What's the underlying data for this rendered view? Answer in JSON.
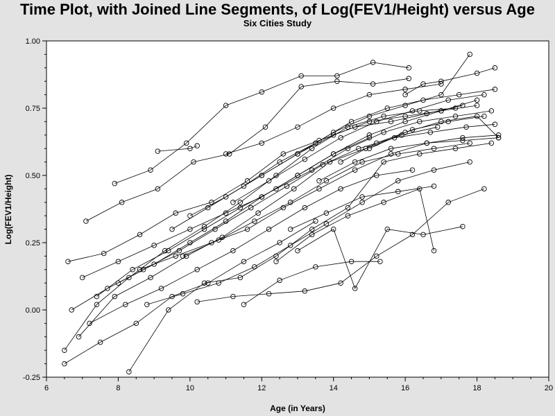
{
  "title": "Time Plot, with Joined Line Segments, of Log(FEV1/Height) versus Age",
  "subtitle": "Six Cities Study",
  "chart_data": {
    "type": "line",
    "title": "Time Plot, with Joined Line Segments, of Log(FEV1/Height) versus Age",
    "subtitle": "Six Cities Study",
    "xlabel": "Age (in Years)",
    "ylabel": "Log(FEV1/Height)",
    "xlim": [
      6,
      20
    ],
    "ylim": [
      -0.25,
      1.0
    ],
    "x_ticks": [
      "6",
      "8",
      "10",
      "12",
      "14",
      "16",
      "18",
      "20"
    ],
    "y_ticks": [
      "-0.25",
      "0.00",
      "0.25",
      "0.50",
      "0.75",
      "1.00"
    ],
    "grid": false,
    "legend": "none",
    "marker": "circle",
    "line_color": "#000000",
    "note": "Spaghetti plot of many subjects; a representative subset of trajectories is listed.",
    "series": [
      {
        "x": [
          6.5,
          7.4,
          8.3,
          9.3,
          10.4,
          11.4,
          12.4,
          13.4,
          14.4,
          15.4,
          16.4,
          17.4
        ],
        "y": [
          -0.15,
          0.02,
          0.12,
          0.22,
          0.31,
          0.4,
          0.5,
          0.6,
          0.68,
          0.72,
          0.74,
          0.75
        ]
      },
      {
        "x": [
          7.9,
          8.9,
          9.9,
          11.0,
          12.0,
          13.1,
          14.1,
          15.1,
          16.1
        ],
        "y": [
          0.47,
          0.52,
          0.62,
          0.76,
          0.81,
          0.87,
          0.87,
          0.92,
          0.9
        ]
      },
      {
        "x": [
          9.1,
          10.0,
          10.2
        ],
        "y": [
          0.59,
          0.6,
          0.61
        ]
      },
      {
        "x": [
          7.1,
          8.1,
          9.1,
          10.1,
          11.1,
          12.1,
          13.1,
          14.1,
          15.1,
          16.1
        ],
        "y": [
          0.33,
          0.4,
          0.45,
          0.55,
          0.58,
          0.68,
          0.83,
          0.85,
          0.84,
          0.86
        ]
      },
      {
        "x": [
          6.6,
          7.6,
          8.6,
          9.6,
          10.6,
          11.6,
          12.6,
          13.6,
          14.6,
          15.6,
          16.6,
          17.6
        ],
        "y": [
          0.18,
          0.21,
          0.28,
          0.36,
          0.4,
          0.48,
          0.58,
          0.63,
          0.68,
          0.7,
          0.73,
          0.76
        ]
      },
      {
        "x": [
          8.3,
          9.4,
          10.4,
          11.4,
          12.4,
          13.4,
          14.4,
          15.4,
          16.4,
          17.4,
          18.4
        ],
        "y": [
          -0.23,
          0.0,
          0.1,
          0.12,
          0.2,
          0.3,
          0.38,
          0.55,
          0.58,
          0.6,
          0.62
        ]
      },
      {
        "x": [
          6.9,
          7.9,
          8.9,
          9.9,
          10.9,
          11.9,
          12.9,
          13.9,
          14.9,
          15.9,
          16.9
        ],
        "y": [
          -0.1,
          0.05,
          0.12,
          0.2,
          0.27,
          0.36,
          0.45,
          0.55,
          0.6,
          0.65,
          0.68
        ]
      },
      {
        "x": [
          10.2,
          11.2,
          12.2,
          13.2,
          14.2,
          15.2,
          16.2,
          17.2,
          18.2
        ],
        "y": [
          0.03,
          0.05,
          0.06,
          0.07,
          0.1,
          0.2,
          0.28,
          0.4,
          0.45
        ]
      },
      {
        "x": [
          11.5,
          12.5,
          13.5,
          14.5,
          15.3
        ],
        "y": [
          0.02,
          0.11,
          0.16,
          0.18,
          0.18
        ]
      },
      {
        "x": [
          12.4,
          13.4,
          14.4,
          15.4,
          16.4,
          16.8
        ],
        "y": [
          0.18,
          0.28,
          0.35,
          0.4,
          0.45,
          0.22
        ]
      },
      {
        "x": [
          13.0,
          14.0,
          14.6,
          15.5,
          16.5,
          17.6
        ],
        "y": [
          0.22,
          0.3,
          0.08,
          0.3,
          0.28,
          0.31
        ]
      },
      {
        "x": [
          7.4,
          8.4,
          9.4,
          10.4,
          11.4,
          12.4,
          13.4,
          14.4,
          15.4,
          16.4,
          17.4,
          18.4
        ],
        "y": [
          0.05,
          0.15,
          0.22,
          0.3,
          0.38,
          0.45,
          0.52,
          0.6,
          0.66,
          0.7,
          0.72,
          0.74
        ]
      },
      {
        "x": [
          8.0,
          9.0,
          10.0,
          11.0,
          12.0,
          13.0,
          14.0,
          15.0,
          16.0,
          17.0,
          18.0
        ],
        "y": [
          0.1,
          0.17,
          0.25,
          0.33,
          0.42,
          0.5,
          0.58,
          0.65,
          0.7,
          0.74,
          0.78
        ]
      },
      {
        "x": [
          6.7,
          7.7,
          8.7,
          9.7,
          10.7,
          11.7,
          12.7,
          13.7,
          14.7,
          15.7,
          16.7,
          17.7,
          18.5
        ],
        "y": [
          0.0,
          0.08,
          0.15,
          0.22,
          0.3,
          0.38,
          0.46,
          0.54,
          0.6,
          0.64,
          0.66,
          0.68,
          0.69
        ]
      },
      {
        "x": [
          9.5,
          10.5,
          11.5,
          12.5,
          13.5,
          14.5,
          15.5,
          16.5,
          17.5,
          18.5
        ],
        "y": [
          0.3,
          0.38,
          0.46,
          0.55,
          0.62,
          0.7,
          0.75,
          0.78,
          0.8,
          0.82
        ]
      },
      {
        "x": [
          10.0,
          11.0,
          12.0,
          13.0,
          14.0,
          15.0,
          16.0,
          17.0,
          18.0
        ],
        "y": [
          0.35,
          0.42,
          0.5,
          0.58,
          0.65,
          0.7,
          0.72,
          0.74,
          0.76
        ]
      },
      {
        "x": [
          11.2,
          12.2,
          13.2,
          14.2,
          15.2,
          16.2,
          17.2,
          18.2
        ],
        "y": [
          0.4,
          0.48,
          0.56,
          0.64,
          0.7,
          0.74,
          0.78,
          0.8
        ]
      },
      {
        "x": [
          12.0,
          13.0,
          14.0,
          15.0,
          16.0,
          17.0,
          17.8
        ],
        "y": [
          0.5,
          0.58,
          0.66,
          0.72,
          0.76,
          0.8,
          0.95
        ]
      },
      {
        "x": [
          8.6,
          9.6,
          10.6,
          11.6,
          12.6,
          13.6,
          14.6,
          15.6,
          16.6,
          17.6,
          18.6
        ],
        "y": [
          0.15,
          0.2,
          0.25,
          0.3,
          0.38,
          0.45,
          0.52,
          0.58,
          0.62,
          0.64,
          0.65
        ]
      },
      {
        "x": [
          7.2,
          8.2,
          9.2,
          10.2,
          11.2,
          12.2,
          13.2,
          14.2,
          15.2,
          16.2
        ],
        "y": [
          -0.05,
          0.02,
          0.08,
          0.15,
          0.22,
          0.3,
          0.38,
          0.45,
          0.5,
          0.52
        ]
      },
      {
        "x": [
          9.8,
          10.8,
          11.8,
          12.8,
          13.8,
          14.8,
          15.8,
          16.8,
          17.8
        ],
        "y": [
          0.2,
          0.26,
          0.33,
          0.4,
          0.48,
          0.55,
          0.58,
          0.6,
          0.62
        ]
      },
      {
        "x": [
          13.6,
          14.6,
          15.6,
          16.6,
          17.6,
          18.6
        ],
        "y": [
          0.48,
          0.55,
          0.6,
          0.62,
          0.63,
          0.64
        ]
      },
      {
        "x": [
          14.2,
          15.2,
          16.2,
          17.2,
          18.2
        ],
        "y": [
          0.55,
          0.62,
          0.67,
          0.7,
          0.72
        ]
      },
      {
        "x": [
          6.5,
          7.5,
          8.5,
          9.5,
          10.5,
          11.5,
          12.5,
          13.5
        ],
        "y": [
          -0.2,
          -0.12,
          -0.05,
          0.05,
          0.1,
          0.18,
          0.25,
          0.33
        ]
      },
      {
        "x": [
          7.0,
          8.0,
          9.0,
          10.0,
          11.0,
          12.0,
          13.0,
          14.0,
          15.0
        ],
        "y": [
          0.12,
          0.18,
          0.24,
          0.3,
          0.36,
          0.42,
          0.5,
          0.58,
          0.64
        ]
      },
      {
        "x": [
          8.8,
          9.8,
          10.8,
          11.8,
          12.8,
          13.8,
          14.8,
          15.8,
          16.8,
          17.8
        ],
        "y": [
          0.02,
          0.06,
          0.1,
          0.16,
          0.24,
          0.32,
          0.4,
          0.48,
          0.52,
          0.55
        ]
      },
      {
        "x": [
          15.0,
          16.0,
          17.0,
          18.0,
          18.6
        ],
        "y": [
          0.6,
          0.66,
          0.7,
          0.72,
          0.64
        ]
      },
      {
        "x": [
          16.0,
          16.5,
          17.0,
          18.0,
          18.5
        ],
        "y": [
          0.8,
          0.84,
          0.85,
          0.88,
          0.9
        ]
      },
      {
        "x": [
          11.0,
          12.0,
          13.0,
          14.0,
          15.0,
          16.0,
          17.0
        ],
        "y": [
          0.58,
          0.62,
          0.68,
          0.75,
          0.8,
          0.82,
          0.84
        ]
      },
      {
        "x": [
          12.8,
          13.8,
          14.8,
          15.8,
          16.8
        ],
        "y": [
          0.3,
          0.36,
          0.42,
          0.44,
          0.46
        ]
      }
    ]
  }
}
